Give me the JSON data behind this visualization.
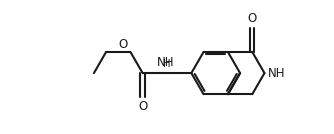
{
  "bg_color": "#ffffff",
  "line_color": "#1a1a1a",
  "line_width": 1.5,
  "font_size": 8.5,
  "figsize": [
    3.34,
    1.34
  ],
  "dpi": 100,
  "xlim": [
    0,
    13
  ],
  "ylim": [
    0,
    5.5
  ]
}
